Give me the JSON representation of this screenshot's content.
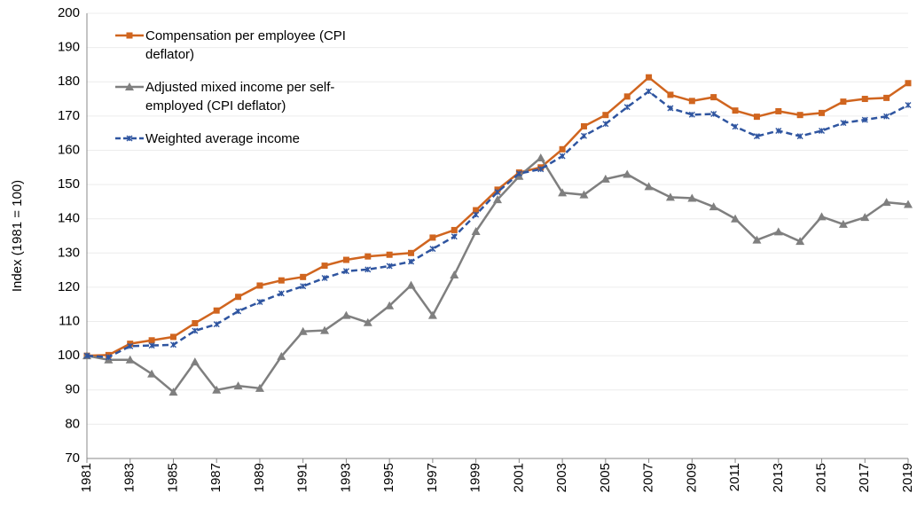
{
  "chart_data": {
    "type": "line",
    "y_label": "Index (1981 = 100)",
    "x": [
      1981,
      1982,
      1983,
      1984,
      1985,
      1986,
      1987,
      1988,
      1989,
      1990,
      1991,
      1992,
      1993,
      1994,
      1995,
      1996,
      1997,
      1998,
      1999,
      2000,
      2001,
      2002,
      2003,
      2004,
      2005,
      2006,
      2007,
      2008,
      2009,
      2010,
      2011,
      2012,
      2013,
      2014,
      2015,
      2016,
      2017,
      2018,
      2019
    ],
    "xlim": [
      1981,
      2019
    ],
    "xticks": [
      1981,
      1983,
      1985,
      1987,
      1989,
      1991,
      1993,
      1995,
      1997,
      1999,
      2001,
      2003,
      2005,
      2007,
      2009,
      2011,
      2013,
      2015,
      2017,
      2019
    ],
    "ylim": [
      70,
      200
    ],
    "yticks": [
      70,
      80,
      90,
      100,
      110,
      120,
      130,
      140,
      150,
      160,
      170,
      180,
      190,
      200
    ],
    "grid": true,
    "legend": "top-left",
    "series": [
      {
        "name": "Compensation per employee (CPI deflator)",
        "color": "#d0651f",
        "marker": "square",
        "dash": false,
        "values": [
          100,
          100.2,
          103.5,
          104.5,
          105.5,
          109.5,
          113.2,
          117.2,
          120.5,
          122,
          123,
          126.3,
          128,
          129,
          129.5,
          130,
          134.5,
          136.7,
          142.5,
          148.5,
          153.5,
          155,
          160.3,
          167,
          170.3,
          175.7,
          181.3,
          176.2,
          174.4,
          175.5,
          171.6,
          169.8,
          171.4,
          170.3,
          170.9,
          174.2,
          175,
          175.3,
          179.6
        ]
      },
      {
        "name": "Adjusted mixed income per self-employed (CPI deflator)",
        "color": "#7f7f7f",
        "marker": "triangle",
        "dash": false,
        "values": [
          100,
          98.8,
          98.8,
          94.7,
          89.4,
          98.2,
          90,
          91.2,
          90.5,
          99.8,
          107.1,
          107.4,
          111.8,
          109.7,
          114.6,
          120.6,
          111.8,
          123.6,
          136.3,
          145.6,
          152.4,
          157.8,
          147.6,
          147,
          151.6,
          153,
          149.4,
          146.3,
          146,
          143.5,
          140,
          133.8,
          136.2,
          133.4,
          140.6,
          138.4,
          140.4,
          144.8,
          144.2
        ]
      },
      {
        "name": "Weighted average income",
        "color": "#2f55a0",
        "marker": "star",
        "dash": true,
        "values": [
          100,
          99.6,
          102.8,
          103,
          103.2,
          107.3,
          109.2,
          113,
          115.7,
          118.2,
          120.3,
          122.7,
          124.7,
          125.2,
          126.2,
          127.5,
          131.2,
          134.8,
          141.2,
          147.8,
          153.2,
          154.5,
          158.3,
          164.2,
          167.7,
          172.6,
          177.2,
          172.3,
          170.4,
          170.6,
          166.9,
          164.1,
          165.7,
          164.1,
          165.7,
          168,
          168.9,
          169.9,
          173.2
        ]
      }
    ]
  }
}
